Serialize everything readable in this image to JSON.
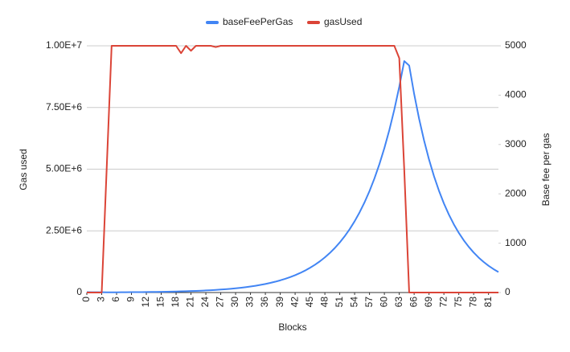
{
  "chart_data": {
    "type": "line",
    "x_label": "Blocks",
    "y_label": "Gas used",
    "y2_label": "Base fee per gas",
    "legend": "top",
    "grid": true,
    "x": [
      0,
      1,
      2,
      3,
      4,
      5,
      6,
      7,
      8,
      9,
      10,
      11,
      12,
      13,
      14,
      15,
      16,
      17,
      18,
      19,
      20,
      21,
      22,
      23,
      24,
      25,
      26,
      27,
      28,
      29,
      30,
      31,
      32,
      33,
      34,
      35,
      36,
      37,
      38,
      39,
      40,
      41,
      42,
      43,
      44,
      45,
      46,
      47,
      48,
      49,
      50,
      51,
      52,
      53,
      54,
      55,
      56,
      57,
      58,
      59,
      60,
      61,
      62,
      63,
      64,
      65,
      66,
      67,
      68,
      69,
      70,
      71,
      72,
      73,
      74,
      75,
      76,
      77,
      78,
      79,
      80,
      81,
      82,
      83
    ],
    "xlim": [
      0,
      83
    ],
    "xticks": [
      0,
      3,
      6,
      9,
      12,
      15,
      18,
      21,
      24,
      27,
      30,
      33,
      36,
      39,
      42,
      45,
      48,
      51,
      54,
      57,
      60,
      63,
      66,
      69,
      72,
      75,
      78,
      81
    ],
    "ylim": [
      0,
      10000000
    ],
    "yticks": [
      0,
      {
        "value": 2500000,
        "label": "2.50E+6"
      },
      {
        "value": 5000000,
        "label": "5.00E+6"
      },
      {
        "value": 7500000,
        "label": "7.50E+6"
      },
      {
        "value": 10000000,
        "label": "1.00E+7"
      }
    ],
    "y2lim": [
      0,
      5000
    ],
    "y2ticks": [
      0,
      1000,
      2000,
      3000,
      4000,
      5000
    ],
    "series": [
      {
        "name": "baseFeePerGas",
        "color": "#4285f4",
        "axis": "y2",
        "values": [
          8,
          7,
          6.1,
          5.4,
          4.7,
          4.5,
          5.1,
          5.7,
          6.4,
          7.2,
          8.1,
          9.1,
          10.3,
          11.5,
          13,
          14.6,
          16.5,
          18.5,
          20.8,
          23.4,
          26.3,
          29.6,
          33.3,
          37.5,
          42.2,
          47.5,
          53.4,
          60.1,
          67.6,
          76,
          85.5,
          96.2,
          108.2,
          121.8,
          137,
          154.1,
          173.4,
          195,
          219.4,
          246.8,
          277.7,
          312.4,
          351.5,
          395.4,
          444.8,
          500.4,
          563,
          633.3,
          712.5,
          801.5,
          901.8,
          1014.5,
          1141.3,
          1284,
          1444.5,
          1625,
          1828.2,
          2056.6,
          2313.7,
          2602.9,
          2928.3,
          3294.3,
          3706.1,
          4169.3,
          4690.4,
          4600,
          4025,
          3522,
          3082,
          2696,
          2359,
          2065,
          1806,
          1581,
          1383,
          1210,
          1059,
          927,
          811,
          709,
          621,
          543,
          475,
          416
        ]
      },
      {
        "name": "gasUsed",
        "color": "#db4437",
        "axis": "y",
        "values": [
          0,
          0,
          0,
          0,
          5000000,
          10000000,
          10000000,
          10000000,
          10000000,
          10000000,
          10000000,
          10000000,
          10000000,
          10000000,
          10000000,
          10000000,
          10000000,
          10000000,
          10000000,
          9700000,
          10000000,
          9800000,
          10000000,
          10000000,
          10000000,
          10000000,
          9950000,
          10000000,
          10000000,
          10000000,
          10000000,
          10000000,
          10000000,
          10000000,
          10000000,
          10000000,
          10000000,
          10000000,
          10000000,
          10000000,
          10000000,
          10000000,
          10000000,
          10000000,
          10000000,
          10000000,
          10000000,
          10000000,
          10000000,
          10000000,
          10000000,
          10000000,
          10000000,
          10000000,
          10000000,
          10000000,
          10000000,
          10000000,
          10000000,
          10000000,
          10000000,
          10000000,
          10000000,
          9500000,
          5000000,
          0,
          0,
          0,
          0,
          0,
          0,
          0,
          0,
          0,
          0,
          0,
          0,
          0,
          0,
          0,
          0,
          0,
          0,
          0
        ]
      }
    ]
  }
}
